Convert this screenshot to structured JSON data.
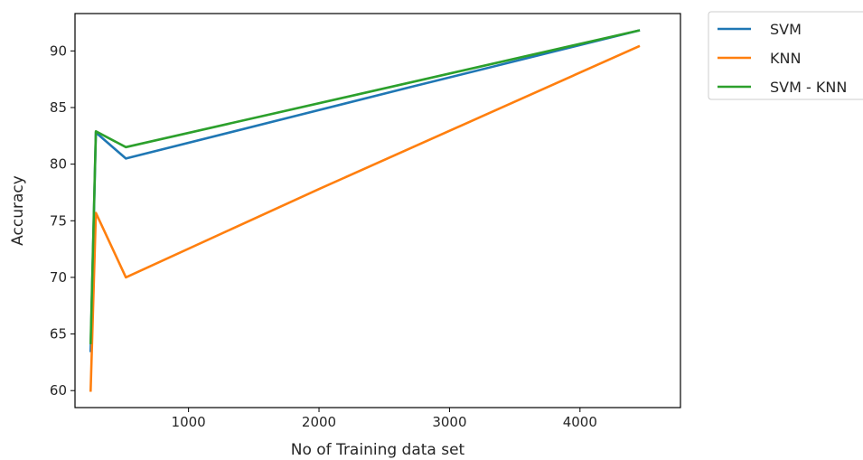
{
  "chart_data": {
    "type": "line",
    "title": "",
    "xlabel": "No of Training data set",
    "ylabel": "Accuracy",
    "xlim": [
      130,
      4770
    ],
    "ylim": [
      58.5,
      93.3
    ],
    "xticks": [
      1000,
      2000,
      3000,
      4000
    ],
    "yticks": [
      60,
      65,
      70,
      75,
      80,
      85,
      90
    ],
    "grid": false,
    "legend_position": "outside-right-top",
    "series": [
      {
        "name": "SVM",
        "color": "#1f77b4",
        "x": [
          250,
          290,
          520,
          2700,
          4450
        ],
        "y": [
          63.5,
          82.8,
          80.5,
          86.8,
          91.8
        ]
      },
      {
        "name": "KNN",
        "color": "#ff7f0e",
        "x": [
          250,
          290,
          520,
          2000,
          4450
        ],
        "y": [
          60.0,
          75.7,
          70.0,
          77.8,
          90.4
        ]
      },
      {
        "name": "SVM - KNN",
        "color": "#2ca02c",
        "x": [
          250,
          290,
          520,
          4450
        ],
        "y": [
          64.2,
          82.9,
          81.5,
          91.8
        ]
      }
    ]
  }
}
